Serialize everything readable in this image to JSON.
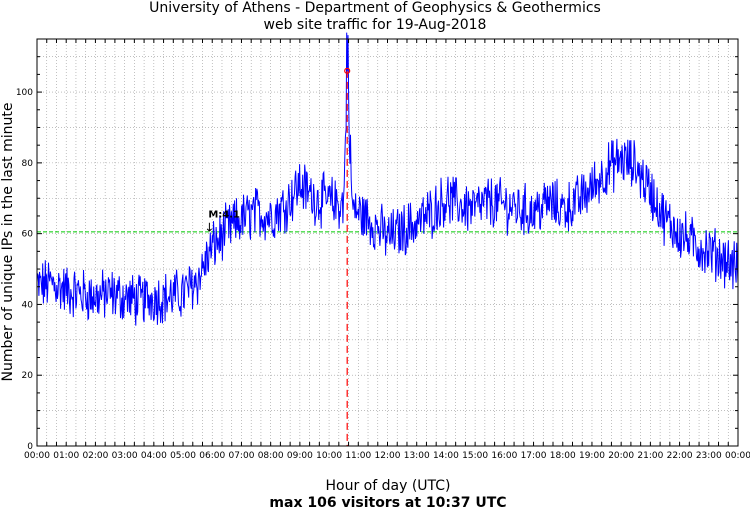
{
  "chart_data": {
    "type": "line",
    "title": "University of Athens - Department of Geophysics & Geothermics",
    "subtitle": "web site traffic for 19-Aug-2018",
    "xlabel": "Hour of day (UTC)",
    "xlabel2": "max 106 visitors at 10:37 UTC",
    "ylabel": "Number of unique IPs in the last minute",
    "xlim": [
      0,
      24
    ],
    "ylim": [
      0,
      115
    ],
    "grid": true,
    "x_tick_labels": [
      "00:00",
      "01:00",
      "02:00",
      "03:00",
      "04:00",
      "05:00",
      "06:00",
      "07:00",
      "08:00",
      "09:00",
      "10:00",
      "11:00",
      "12:00",
      "13:00",
      "14:00",
      "15:00",
      "16:00",
      "17:00",
      "18:00",
      "19:00",
      "20:00",
      "21:00",
      "22:00",
      "23:00",
      "00:00"
    ],
    "y_ticks": [
      0,
      20,
      40,
      60,
      80,
      100
    ],
    "reference_line": {
      "y": 60.5,
      "color": "#00cc00"
    },
    "max_marker": {
      "x": 10.62,
      "y": 106,
      "color": "#ff0000"
    },
    "annotation": {
      "label": "M:4.1",
      "x": 5.9,
      "y": 60
    },
    "series": [
      {
        "color": "#0000ff",
        "x": [
          0,
          0.5,
          1,
          1.5,
          2,
          2.5,
          3,
          3.5,
          4,
          4.5,
          5,
          5.5,
          6,
          6.5,
          7,
          7.5,
          8,
          8.5,
          9,
          9.5,
          10,
          10.5,
          10.62,
          10.8,
          11,
          11.5,
          12,
          12.5,
          13,
          13.5,
          14,
          14.5,
          15,
          15.5,
          16,
          16.5,
          17,
          17.5,
          18,
          18.5,
          19,
          19.5,
          20,
          20.5,
          21,
          21.5,
          22,
          22.5,
          23,
          23.5,
          24
        ],
        "y": [
          45,
          46,
          44,
          43,
          42,
          43,
          42,
          41,
          42,
          42,
          43,
          47,
          56,
          61,
          64,
          66,
          65,
          68,
          74,
          70,
          69,
          68,
          106,
          67,
          66,
          63,
          59,
          61,
          63,
          66,
          70,
          68,
          67,
          69,
          68,
          67,
          66,
          69,
          67,
          69,
          73,
          78,
          81,
          79,
          72,
          64,
          60,
          57,
          55,
          53,
          50
        ]
      }
    ]
  }
}
